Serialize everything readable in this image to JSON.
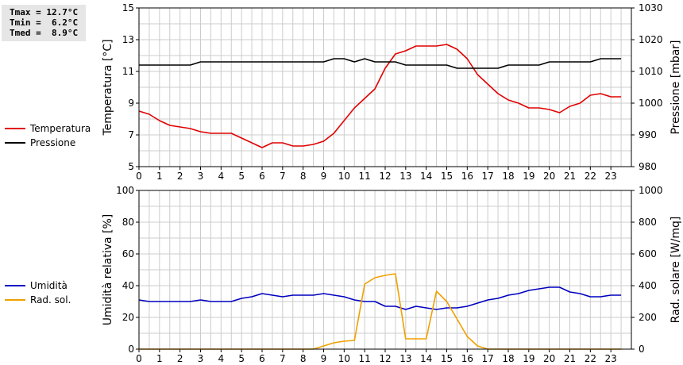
{
  "stats": {
    "tmax": "Tmax = 12.7°C",
    "tmin": "Tmin =  6.2°C",
    "tmed": "Tmed =  8.9°C"
  },
  "colors": {
    "temperature": "#e00000",
    "pressure": "#000000",
    "humidity": "#0000c0",
    "radiation": "#f0a000",
    "grid": "#cccccc"
  },
  "chart_data": [
    {
      "type": "line",
      "xlim": [
        0,
        24
      ],
      "xticks": [
        0,
        1,
        2,
        3,
        4,
        5,
        6,
        7,
        8,
        9,
        10,
        11,
        12,
        13,
        14,
        15,
        16,
        17,
        18,
        19,
        20,
        21,
        22,
        23
      ],
      "y_left": {
        "label": "Temperatura [°C]",
        "lim": [
          5,
          15
        ],
        "ticks": [
          5,
          7,
          9,
          11,
          13,
          15
        ]
      },
      "y_right": {
        "label": "Pressione [mbar]",
        "lim": [
          980,
          1030
        ],
        "ticks": [
          980,
          990,
          1000,
          1010,
          1020,
          1030
        ]
      },
      "grid": true,
      "series": [
        {
          "name": "Temperatura",
          "axis": "left",
          "color": "#e00000",
          "x": [
            0,
            0.5,
            1,
            1.5,
            2,
            2.5,
            3,
            3.5,
            4,
            4.5,
            5,
            5.5,
            6,
            6.5,
            7,
            7.5,
            8,
            8.5,
            9,
            9.5,
            10,
            10.5,
            11,
            11.5,
            12,
            12.5,
            13,
            13.5,
            14,
            14.5,
            15,
            15.5,
            16,
            16.5,
            17,
            17.5,
            18,
            18.5,
            19,
            19.5,
            20,
            20.5,
            21,
            21.5,
            22,
            22.5,
            23,
            23.5
          ],
          "y": [
            8.5,
            8.3,
            7.9,
            7.6,
            7.5,
            7.4,
            7.2,
            7.1,
            7.1,
            7.1,
            6.8,
            6.5,
            6.2,
            6.5,
            6.5,
            6.3,
            6.3,
            6.4,
            6.6,
            7.1,
            7.9,
            8.7,
            9.3,
            9.9,
            11.2,
            12.1,
            12.3,
            12.6,
            12.6,
            12.6,
            12.7,
            12.4,
            11.8,
            10.8,
            10.2,
            9.6,
            9.2,
            9.0,
            8.7,
            8.7,
            8.6,
            8.4,
            8.8,
            9.0,
            9.5,
            9.6,
            9.4,
            9.4
          ]
        },
        {
          "name": "Pressione",
          "axis": "right",
          "color": "#000000",
          "x": [
            0,
            0.5,
            1,
            1.5,
            2,
            2.5,
            3,
            3.5,
            4,
            4.5,
            5,
            5.5,
            6,
            6.5,
            7,
            7.5,
            8,
            8.5,
            9,
            9.5,
            10,
            10.5,
            11,
            11.5,
            12,
            12.5,
            13,
            13.5,
            14,
            14.5,
            15,
            15.5,
            16,
            16.5,
            17,
            17.5,
            18,
            18.5,
            19,
            19.5,
            20,
            20.5,
            21,
            21.5,
            22,
            22.5,
            23,
            23.5
          ],
          "y": [
            1012,
            1012,
            1012,
            1012,
            1012,
            1012,
            1013,
            1013,
            1013,
            1013,
            1013,
            1013,
            1013,
            1013,
            1013,
            1013,
            1013,
            1013,
            1013,
            1014,
            1014,
            1013,
            1014,
            1013,
            1013,
            1013,
            1012,
            1012,
            1012,
            1012,
            1012,
            1011,
            1011,
            1011,
            1011,
            1011,
            1012,
            1012,
            1012,
            1012,
            1013,
            1013,
            1013,
            1013,
            1013,
            1014,
            1014,
            1014
          ]
        }
      ],
      "legend": "left"
    },
    {
      "type": "line",
      "xlim": [
        0,
        24
      ],
      "xticks": [
        0,
        1,
        2,
        3,
        4,
        5,
        6,
        7,
        8,
        9,
        10,
        11,
        12,
        13,
        14,
        15,
        16,
        17,
        18,
        19,
        20,
        21,
        22,
        23
      ],
      "y_left": {
        "label": "Umidità relativa [%]",
        "lim": [
          0,
          100
        ],
        "ticks": [
          0,
          20,
          40,
          60,
          80,
          100
        ]
      },
      "y_right": {
        "label": "Rad. solare [W/mq]",
        "lim": [
          0,
          1000
        ],
        "ticks": [
          0,
          200,
          400,
          600,
          800,
          1000
        ]
      },
      "grid": true,
      "series": [
        {
          "name": "Umidità",
          "axis": "left",
          "color": "#0000c0",
          "x": [
            0,
            0.5,
            1,
            1.5,
            2,
            2.5,
            3,
            3.5,
            4,
            4.5,
            5,
            5.5,
            6,
            6.5,
            7,
            7.5,
            8,
            8.5,
            9,
            9.5,
            10,
            10.5,
            11,
            11.5,
            12,
            12.5,
            13,
            13.5,
            14,
            14.5,
            15,
            15.5,
            16,
            16.5,
            17,
            17.5,
            18,
            18.5,
            19,
            19.5,
            20,
            20.5,
            21,
            21.5,
            22,
            22.5,
            23,
            23.5
          ],
          "y": [
            31,
            30,
            30,
            30,
            30,
            30,
            31,
            30,
            30,
            30,
            32,
            33,
            35,
            34,
            33,
            34,
            34,
            34,
            35,
            34,
            33,
            31,
            30,
            30,
            27,
            27,
            25,
            27,
            26,
            25,
            26,
            26,
            27,
            29,
            31,
            32,
            34,
            35,
            37,
            38,
            39,
            39,
            36,
            35,
            33,
            33,
            34,
            34
          ]
        },
        {
          "name": "Rad. sol.",
          "axis": "right",
          "color": "#f0a000",
          "x": [
            0,
            0.5,
            1,
            1.5,
            2,
            2.5,
            3,
            3.5,
            4,
            4.5,
            5,
            5.5,
            6,
            6.5,
            7,
            7.5,
            8,
            8.5,
            9,
            9.5,
            10,
            10.5,
            11,
            11.5,
            12,
            12.5,
            13,
            13.5,
            14,
            14.5,
            15,
            15.5,
            16,
            16.5,
            17,
            17.5,
            18,
            18.5,
            19,
            19.5,
            20,
            20.5,
            21,
            21.5,
            22,
            22.5,
            23,
            23.5
          ],
          "y": [
            0,
            0,
            0,
            0,
            0,
            0,
            0,
            0,
            0,
            0,
            0,
            0,
            0,
            0,
            0,
            0,
            0,
            0,
            20,
            40,
            50,
            55,
            410,
            450,
            465,
            475,
            65,
            65,
            65,
            365,
            300,
            190,
            80,
            20,
            0,
            0,
            0,
            0,
            0,
            0,
            0,
            0,
            0,
            0,
            0,
            0,
            0,
            0
          ]
        }
      ],
      "legend": "left"
    }
  ]
}
